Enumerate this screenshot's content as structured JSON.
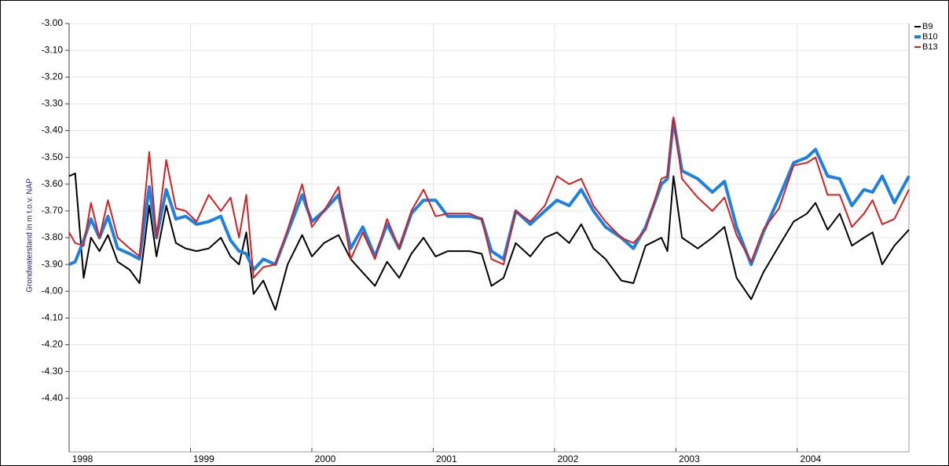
{
  "chart_data": {
    "type": "line",
    "y_label": "Grondwaterstand in m t.o.v. NAP",
    "x": [
      1998.0,
      1998.05,
      1998.12,
      1998.18,
      1998.25,
      1998.32,
      1998.4,
      1998.5,
      1998.58,
      1998.66,
      1998.72,
      1998.8,
      1998.88,
      1998.96,
      1999.05,
      1999.15,
      1999.25,
      1999.33,
      1999.4,
      1999.46,
      1999.52,
      1999.6,
      1999.7,
      1999.8,
      1999.92,
      2000.0,
      2000.1,
      2000.22,
      2000.32,
      2000.42,
      2000.52,
      2000.62,
      2000.72,
      2000.82,
      2000.92,
      2001.02,
      2001.12,
      2001.3,
      2001.4,
      2001.48,
      2001.58,
      2001.68,
      2001.8,
      2001.92,
      2002.02,
      2002.12,
      2002.22,
      2002.32,
      2002.42,
      2002.55,
      2002.65,
      2002.75,
      2002.88,
      2002.93,
      2002.98,
      2003.05,
      2003.18,
      2003.3,
      2003.4,
      2003.5,
      2003.62,
      2003.72,
      2003.85,
      2003.97,
      2004.08,
      2004.15,
      2004.25,
      2004.35,
      2004.45,
      2004.55,
      2004.62,
      2004.7,
      2004.8,
      2004.92
    ],
    "series": [
      {
        "name": "B9",
        "color": "#000000",
        "width": 2,
        "values": [
          -3.57,
          -3.56,
          -3.95,
          -3.8,
          -3.85,
          -3.79,
          -3.89,
          -3.92,
          -3.97,
          -3.68,
          -3.87,
          -3.68,
          -3.82,
          -3.84,
          -3.85,
          -3.84,
          -3.8,
          -3.87,
          -3.9,
          -3.78,
          -4.01,
          -3.96,
          -4.07,
          -3.9,
          -3.79,
          -3.87,
          -3.82,
          -3.79,
          -3.88,
          -3.93,
          -3.98,
          -3.89,
          -3.95,
          -3.86,
          -3.8,
          -3.87,
          -3.85,
          -3.85,
          -3.86,
          -3.98,
          -3.95,
          -3.82,
          -3.87,
          -3.8,
          -3.78,
          -3.82,
          -3.75,
          -3.84,
          -3.88,
          -3.96,
          -3.97,
          -3.83,
          -3.8,
          -3.85,
          -3.57,
          -3.8,
          -3.84,
          -3.8,
          -3.76,
          -3.95,
          -4.03,
          -3.93,
          -3.83,
          -3.74,
          -3.71,
          -3.67,
          -3.77,
          -3.71,
          -3.83,
          -3.8,
          -3.78,
          -3.9,
          -3.83,
          -3.77
        ]
      },
      {
        "name": "B10",
        "color": "#1e80e0",
        "width": 4,
        "values": [
          -3.9,
          -3.89,
          -3.81,
          -3.73,
          -3.8,
          -3.72,
          -3.84,
          -3.86,
          -3.88,
          -3.61,
          -3.8,
          -3.62,
          -3.73,
          -3.72,
          -3.75,
          -3.74,
          -3.72,
          -3.81,
          -3.85,
          -3.86,
          -3.92,
          -3.88,
          -3.9,
          -3.78,
          -3.64,
          -3.74,
          -3.7,
          -3.64,
          -3.84,
          -3.76,
          -3.87,
          -3.75,
          -3.84,
          -3.71,
          -3.66,
          -3.66,
          -3.72,
          -3.72,
          -3.73,
          -3.85,
          -3.88,
          -3.7,
          -3.75,
          -3.7,
          -3.66,
          -3.68,
          -3.62,
          -3.7,
          -3.76,
          -3.8,
          -3.84,
          -3.76,
          -3.6,
          -3.58,
          -3.36,
          -3.55,
          -3.58,
          -3.63,
          -3.59,
          -3.76,
          -3.9,
          -3.78,
          -3.65,
          -3.52,
          -3.5,
          -3.47,
          -3.57,
          -3.58,
          -3.68,
          -3.62,
          -3.63,
          -3.57,
          -3.67,
          -3.57
        ]
      },
      {
        "name": "B13",
        "color": "#d42020",
        "width": 2,
        "values": [
          -3.78,
          -3.82,
          -3.83,
          -3.67,
          -3.8,
          -3.66,
          -3.8,
          -3.84,
          -3.87,
          -3.48,
          -3.8,
          -3.51,
          -3.69,
          -3.7,
          -3.74,
          -3.64,
          -3.7,
          -3.65,
          -3.8,
          -3.64,
          -3.95,
          -3.91,
          -3.9,
          -3.77,
          -3.6,
          -3.76,
          -3.7,
          -3.61,
          -3.88,
          -3.78,
          -3.88,
          -3.73,
          -3.84,
          -3.7,
          -3.62,
          -3.72,
          -3.71,
          -3.71,
          -3.73,
          -3.88,
          -3.9,
          -3.7,
          -3.74,
          -3.68,
          -3.57,
          -3.6,
          -3.58,
          -3.68,
          -3.74,
          -3.8,
          -3.82,
          -3.77,
          -3.58,
          -3.57,
          -3.35,
          -3.58,
          -3.65,
          -3.7,
          -3.65,
          -3.79,
          -3.89,
          -3.77,
          -3.69,
          -3.53,
          -3.52,
          -3.5,
          -3.64,
          -3.64,
          -3.76,
          -3.71,
          -3.66,
          -3.75,
          -3.73,
          -3.62
        ]
      }
    ],
    "xlim": [
      1998,
      2004.92
    ],
    "xticks": [
      1998,
      1999,
      2000,
      2001,
      2002,
      2003,
      2004
    ],
    "ylim": [
      -4.6,
      -3.0
    ],
    "yticks": [
      {
        "value": -3.0,
        "label": "-3.00"
      },
      {
        "value": -3.1,
        "label": "-3.10"
      },
      {
        "value": -3.2,
        "label": "-3.20"
      },
      {
        "value": -3.3,
        "label": "-3.30"
      },
      {
        "value": -3.4,
        "label": "-3.40"
      },
      {
        "value": -3.5,
        "label": "-3.50"
      },
      {
        "value": -3.6,
        "label": "-3.60"
      },
      {
        "value": -3.7,
        "label": "-3.70"
      },
      {
        "value": -3.8,
        "label": "-3.80"
      },
      {
        "value": -3.9,
        "label": "-3.90"
      },
      {
        "value": -4.0,
        "label": "-4.00"
      },
      {
        "value": -4.1,
        "label": "-4.10"
      },
      {
        "value": -4.2,
        "label": "-4.20"
      },
      {
        "value": -4.3,
        "label": "-4.30"
      },
      {
        "value": -4.4,
        "label": "-4.40"
      }
    ],
    "grid": true,
    "legend": "right"
  }
}
